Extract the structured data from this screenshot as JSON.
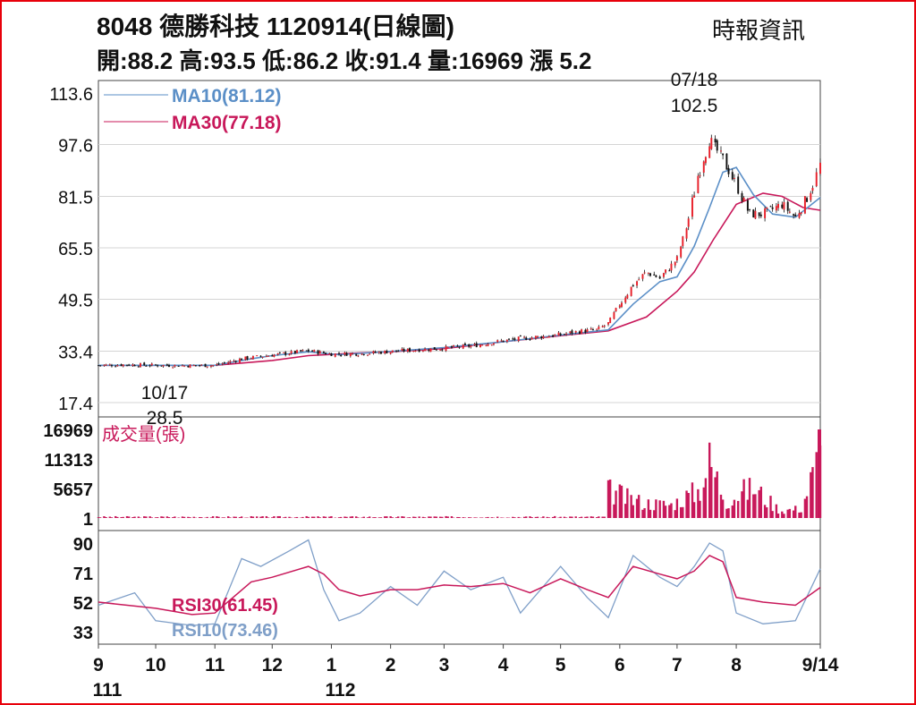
{
  "header": {
    "title": "8048  德勝科技 1120914(日線圖)",
    "source": "時報資訊",
    "quote": "開:88.2 高:93.5 低:86.2 收:91.4 量:16969 漲 5.2"
  },
  "colors": {
    "frame": "#e8000b",
    "up_candle": "#e8202a",
    "down_candle": "#111111",
    "ma10": "#5b8fc7",
    "ma30": "#c8185a",
    "volume": "#c8185a",
    "rsi30": "#c8185a",
    "rsi10": "#7f9fc8",
    "grid": "#d4d4d4"
  },
  "chart_data": [
    {
      "type": "candlestick",
      "name": "price",
      "ylim": [
        17.4,
        113.6
      ],
      "y_ticks": [
        "113.6",
        "97.6",
        "81.5",
        "65.5",
        "49.5",
        "33.4",
        "17.4"
      ],
      "legend": [
        {
          "label": "MA10(81.12)",
          "color": "#5b8fc7"
        },
        {
          "label": "MA30(77.18)",
          "color": "#c8185a"
        }
      ],
      "annotations": [
        {
          "date_label": "07/18",
          "value_label": "102.5",
          "note": "high"
        },
        {
          "date_label": "10/17",
          "value_label": "28.5",
          "note": "low"
        }
      ],
      "close_series": [
        [
          "2022-09-01",
          29.0
        ],
        [
          "2022-09-15",
          29.2
        ],
        [
          "2022-10-01",
          29.0
        ],
        [
          "2022-10-17",
          28.9
        ],
        [
          "2022-11-01",
          29.0
        ],
        [
          "2022-11-15",
          31.0
        ],
        [
          "2022-12-01",
          32.2
        ],
        [
          "2022-12-20",
          33.5
        ],
        [
          "2023-01-01",
          32.5
        ],
        [
          "2023-01-16",
          32.6
        ],
        [
          "2023-02-01",
          33.3
        ],
        [
          "2023-02-15",
          33.8
        ],
        [
          "2023-03-01",
          34.3
        ],
        [
          "2023-03-15",
          35.0
        ],
        [
          "2023-04-01",
          36.6
        ],
        [
          "2023-04-15",
          37.6
        ],
        [
          "2023-05-01",
          38.5
        ],
        [
          "2023-05-10",
          39.5
        ],
        [
          "2023-05-20",
          40.0
        ],
        [
          "2023-05-26",
          42.0
        ],
        [
          "2023-06-01",
          48.0
        ],
        [
          "2023-06-08",
          54.0
        ],
        [
          "2023-06-15",
          58.0
        ],
        [
          "2023-06-22",
          56.0
        ],
        [
          "2023-07-01",
          62.0
        ],
        [
          "2023-07-06",
          72.0
        ],
        [
          "2023-07-12",
          88.0
        ],
        [
          "2023-07-18",
          99.0
        ],
        [
          "2023-07-25",
          93.0
        ],
        [
          "2023-08-01",
          85.0
        ],
        [
          "2023-08-08",
          76.0
        ],
        [
          "2023-08-15",
          76.0
        ],
        [
          "2023-08-25",
          79.0
        ],
        [
          "2023-09-01",
          75.0
        ],
        [
          "2023-09-08",
          82.0
        ],
        [
          "2023-09-14",
          91.4
        ]
      ],
      "ma10": [
        [
          "2022-09-01",
          29.0
        ],
        [
          "2022-11-01",
          29.0
        ],
        [
          "2022-11-20",
          31.0
        ],
        [
          "2022-12-01",
          32.0
        ],
        [
          "2022-12-20",
          33.2
        ],
        [
          "2023-01-05",
          32.3
        ],
        [
          "2023-02-01",
          33.3
        ],
        [
          "2023-03-01",
          34.5
        ],
        [
          "2023-04-01",
          36.3
        ],
        [
          "2023-05-01",
          38.4
        ],
        [
          "2023-05-26",
          40.0
        ],
        [
          "2023-06-08",
          48.0
        ],
        [
          "2023-06-22",
          55.0
        ],
        [
          "2023-07-01",
          56.5
        ],
        [
          "2023-07-10",
          66.0
        ],
        [
          "2023-07-18",
          78.0
        ],
        [
          "2023-07-25",
          89.0
        ],
        [
          "2023-08-01",
          90.5
        ],
        [
          "2023-08-10",
          82.0
        ],
        [
          "2023-08-20",
          76.0
        ],
        [
          "2023-09-01",
          75.0
        ],
        [
          "2023-09-14",
          81.12
        ]
      ],
      "ma30": [
        [
          "2022-09-01",
          29.0
        ],
        [
          "2022-11-01",
          29.0
        ],
        [
          "2022-12-01",
          30.5
        ],
        [
          "2022-12-20",
          32.0
        ],
        [
          "2023-01-15",
          32.8
        ],
        [
          "2023-02-01",
          33.2
        ],
        [
          "2023-03-01",
          34.2
        ],
        [
          "2023-04-01",
          36.3
        ],
        [
          "2023-05-01",
          38.2
        ],
        [
          "2023-05-26",
          39.7
        ],
        [
          "2023-06-15",
          44.0
        ],
        [
          "2023-07-01",
          52.0
        ],
        [
          "2023-07-10",
          58.0
        ],
        [
          "2023-07-20",
          68.0
        ],
        [
          "2023-08-01",
          79.0
        ],
        [
          "2023-08-15",
          82.5
        ],
        [
          "2023-08-25",
          81.5
        ],
        [
          "2023-09-05",
          78.0
        ],
        [
          "2023-09-14",
          77.18
        ]
      ]
    },
    {
      "type": "bar",
      "name": "volume",
      "label": "成交量(張)",
      "y_ticks": [
        "16969",
        "11313",
        "5657",
        "1"
      ],
      "ylim": [
        1,
        16969
      ],
      "points": [
        [
          "2023-05-29",
          7000
        ],
        [
          "2023-06-05",
          5200
        ],
        [
          "2023-06-15",
          4000
        ],
        [
          "2023-06-28",
          3500
        ],
        [
          "2023-07-05",
          5500
        ],
        [
          "2023-07-12",
          7200
        ],
        [
          "2023-07-18",
          14800
        ],
        [
          "2023-07-27",
          4500
        ],
        [
          "2023-08-02",
          6500
        ],
        [
          "2023-08-10",
          8000
        ],
        [
          "2023-08-24",
          2000
        ],
        [
          "2023-09-04",
          2500
        ],
        [
          "2023-09-14",
          16969
        ]
      ]
    },
    {
      "type": "line",
      "name": "rsi",
      "y_ticks": [
        "90",
        "71",
        "52",
        "33"
      ],
      "ylim": [
        33,
        90
      ],
      "legend": [
        {
          "label": "RSI30(61.45)",
          "color": "#c8185a"
        },
        {
          "label": "RSI10(73.46)",
          "color": "#7f9fc8"
        }
      ],
      "rsi30": [
        [
          "2022-09-01",
          52
        ],
        [
          "2022-10-01",
          48
        ],
        [
          "2022-10-20",
          44
        ],
        [
          "2022-11-01",
          45
        ],
        [
          "2022-11-20",
          65
        ],
        [
          "2022-12-01",
          68
        ],
        [
          "2022-12-20",
          75
        ],
        [
          "2022-12-28",
          70
        ],
        [
          "2023-01-05",
          60
        ],
        [
          "2023-01-16",
          56
        ],
        [
          "2023-02-01",
          60
        ],
        [
          "2023-02-15",
          60
        ],
        [
          "2023-03-01",
          63
        ],
        [
          "2023-03-15",
          62
        ],
        [
          "2023-04-01",
          64
        ],
        [
          "2023-04-15",
          58
        ],
        [
          "2023-05-01",
          67
        ],
        [
          "2023-05-15",
          60
        ],
        [
          "2023-05-26",
          55
        ],
        [
          "2023-06-08",
          75
        ],
        [
          "2023-06-22",
          70
        ],
        [
          "2023-07-01",
          67
        ],
        [
          "2023-07-10",
          72
        ],
        [
          "2023-07-18",
          82
        ],
        [
          "2023-07-25",
          78
        ],
        [
          "2023-08-01",
          55
        ],
        [
          "2023-08-15",
          52
        ],
        [
          "2023-09-01",
          50
        ],
        [
          "2023-09-14",
          61.45
        ]
      ],
      "rsi10": [
        [
          "2022-09-01",
          50
        ],
        [
          "2022-09-20",
          58
        ],
        [
          "2022-10-01",
          40
        ],
        [
          "2022-10-20",
          37
        ],
        [
          "2022-11-01",
          38
        ],
        [
          "2022-11-15",
          80
        ],
        [
          "2022-11-25",
          75
        ],
        [
          "2022-12-10",
          85
        ],
        [
          "2022-12-20",
          92
        ],
        [
          "2022-12-28",
          60
        ],
        [
          "2023-01-05",
          40
        ],
        [
          "2023-01-16",
          45
        ],
        [
          "2023-02-01",
          62
        ],
        [
          "2023-02-15",
          50
        ],
        [
          "2023-03-01",
          72
        ],
        [
          "2023-03-15",
          60
        ],
        [
          "2023-04-01",
          68
        ],
        [
          "2023-04-10",
          45
        ],
        [
          "2023-05-01",
          75
        ],
        [
          "2023-05-15",
          55
        ],
        [
          "2023-05-26",
          42
        ],
        [
          "2023-06-08",
          82
        ],
        [
          "2023-06-22",
          68
        ],
        [
          "2023-07-01",
          62
        ],
        [
          "2023-07-10",
          75
        ],
        [
          "2023-07-18",
          90
        ],
        [
          "2023-07-25",
          85
        ],
        [
          "2023-08-01",
          45
        ],
        [
          "2023-08-15",
          38
        ],
        [
          "2023-09-01",
          40
        ],
        [
          "2023-09-14",
          73.46
        ]
      ]
    }
  ],
  "x_axis": {
    "months": [
      {
        "label": "9",
        "date": "2022-09-01"
      },
      {
        "label": "10",
        "date": "2022-10-01"
      },
      {
        "label": "11",
        "date": "2022-11-01"
      },
      {
        "label": "12",
        "date": "2022-12-01"
      },
      {
        "label": "1",
        "date": "2023-01-01"
      },
      {
        "label": "2",
        "date": "2023-02-01"
      },
      {
        "label": "3",
        "date": "2023-03-01"
      },
      {
        "label": "4",
        "date": "2023-04-01"
      },
      {
        "label": "5",
        "date": "2023-05-01"
      },
      {
        "label": "6",
        "date": "2023-06-01"
      },
      {
        "label": "7",
        "date": "2023-07-01"
      },
      {
        "label": "8",
        "date": "2023-08-01"
      },
      {
        "label": "9/14",
        "date": "2023-09-14"
      }
    ],
    "years": [
      {
        "label": "111",
        "date": "2022-09-01"
      },
      {
        "label": "112",
        "date": "2023-01-01"
      }
    ]
  }
}
